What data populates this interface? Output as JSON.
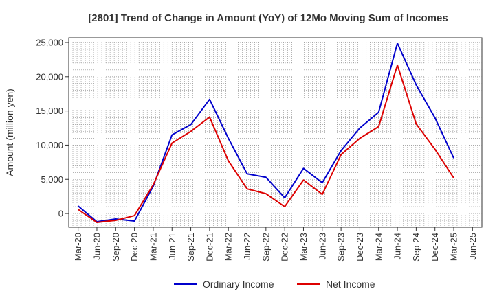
{
  "chart_data": {
    "type": "line",
    "title": "[2801]  Trend of Change in Amount (YoY) of 12Mo Moving Sum of Incomes",
    "xlabel": "",
    "ylabel": "Amount (million yen)",
    "categories": [
      "Mar-20",
      "Jun-20",
      "Sep-20",
      "Dec-20",
      "Mar-21",
      "Jun-21",
      "Sep-21",
      "Dec-21",
      "Mar-22",
      "Jun-22",
      "Sep-22",
      "Dec-22",
      "Mar-23",
      "Jun-23",
      "Sep-23",
      "Dec-23",
      "Mar-24",
      "Jun-24",
      "Sep-24",
      "Dec-24",
      "Mar-25",
      "Jun-25"
    ],
    "ylim": [
      -2000,
      25700
    ],
    "yticks": [
      0,
      5000,
      10000,
      15000,
      20000,
      25000
    ],
    "ytick_labels": [
      "0",
      "5,000",
      "10,000",
      "15,000",
      "20,000",
      "25,000"
    ],
    "grid": true,
    "legend_position": "bottom-center",
    "series": [
      {
        "name": "Ordinary Income",
        "color": "#0000cc",
        "values": [
          1100,
          -1200,
          -800,
          -1100,
          4000,
          11500,
          13000,
          16700,
          11000,
          5800,
          5300,
          2300,
          6600,
          4500,
          9200,
          12500,
          14800,
          24900,
          18800,
          14000,
          8100,
          null
        ]
      },
      {
        "name": "Net Income",
        "color": "#dd0000",
        "values": [
          600,
          -1300,
          -1000,
          -300,
          4200,
          10300,
          12000,
          14100,
          7700,
          3600,
          2900,
          1000,
          4900,
          2800,
          8600,
          11000,
          12700,
          21700,
          13100,
          9400,
          5200,
          null
        ]
      }
    ]
  }
}
